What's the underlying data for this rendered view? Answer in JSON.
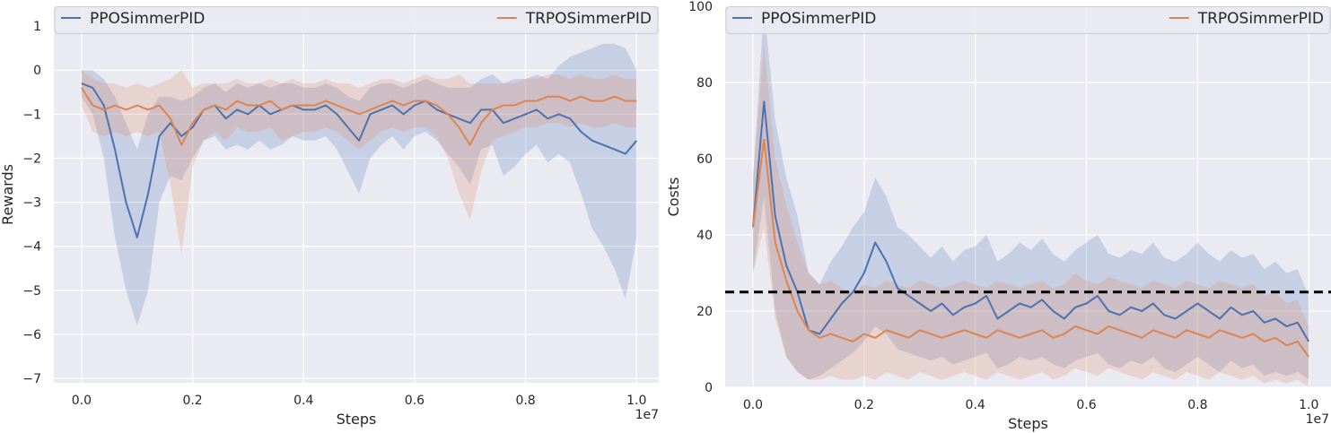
{
  "chart_data": [
    {
      "type": "line",
      "xlabel": "Steps",
      "ylabel": "Rewards",
      "x_offset_label": "1e7",
      "xlim": [
        -0.05,
        1.04
      ],
      "ylim": [
        -7.1,
        1.45
      ],
      "xticks": [
        "0.0",
        "0.2",
        "0.4",
        "0.6",
        "0.8",
        "1.0"
      ],
      "yticks": [
        "1",
        "0",
        "−1",
        "−2",
        "−3",
        "−4",
        "−5",
        "−6",
        "−7"
      ],
      "grid": true,
      "legend": "top, spanning width",
      "series": [
        {
          "name": "PPOSimmerPID",
          "color": "#4c72b0",
          "x": [
            0.0,
            0.02,
            0.04,
            0.06,
            0.08,
            0.1,
            0.12,
            0.14,
            0.16,
            0.18,
            0.2,
            0.22,
            0.24,
            0.26,
            0.28,
            0.3,
            0.32,
            0.34,
            0.36,
            0.38,
            0.4,
            0.42,
            0.44,
            0.46,
            0.48,
            0.5,
            0.52,
            0.54,
            0.56,
            0.58,
            0.6,
            0.62,
            0.64,
            0.66,
            0.68,
            0.7,
            0.72,
            0.74,
            0.76,
            0.78,
            0.8,
            0.82,
            0.84,
            0.86,
            0.88,
            0.9,
            0.92,
            0.94,
            0.96,
            0.98,
            1.0
          ],
          "y": [
            -0.3,
            -0.4,
            -0.8,
            -1.8,
            -3.0,
            -3.8,
            -2.8,
            -1.5,
            -1.2,
            -1.5,
            -1.3,
            -0.9,
            -0.8,
            -1.1,
            -0.9,
            -1.0,
            -0.8,
            -1.0,
            -0.9,
            -0.8,
            -0.9,
            -0.9,
            -0.8,
            -1.0,
            -1.3,
            -1.6,
            -1.0,
            -0.9,
            -0.8,
            -1.0,
            -0.8,
            -0.7,
            -0.9,
            -1.0,
            -1.1,
            -1.2,
            -0.9,
            -0.9,
            -1.2,
            -1.1,
            -1.0,
            -0.9,
            -1.1,
            -1.0,
            -1.1,
            -1.4,
            -1.6,
            -1.7,
            -1.8,
            -1.9,
            -1.6
          ],
          "band_lower": [
            -0.6,
            -1.0,
            -2.0,
            -3.8,
            -5.0,
            -5.8,
            -5.0,
            -3.0,
            -2.4,
            -2.5,
            -2.0,
            -1.6,
            -1.5,
            -1.8,
            -1.7,
            -1.8,
            -1.6,
            -1.8,
            -1.7,
            -1.5,
            -1.6,
            -1.6,
            -1.5,
            -1.8,
            -2.3,
            -2.8,
            -2.0,
            -1.7,
            -1.5,
            -1.8,
            -1.5,
            -1.4,
            -1.6,
            -1.9,
            -2.2,
            -2.6,
            -1.8,
            -1.7,
            -2.4,
            -2.2,
            -1.9,
            -1.7,
            -2.1,
            -1.9,
            -2.1,
            -2.8,
            -3.6,
            -4.0,
            -4.5,
            -5.2,
            -3.8
          ],
          "band_upper": [
            0.0,
            0.0,
            -0.2,
            -0.6,
            -1.2,
            -1.8,
            -1.0,
            -0.6,
            -0.6,
            -0.7,
            -0.6,
            -0.4,
            -0.3,
            -0.5,
            -0.3,
            -0.4,
            -0.3,
            -0.4,
            -0.3,
            -0.3,
            -0.4,
            -0.4,
            -0.3,
            -0.4,
            -0.6,
            -0.7,
            -0.4,
            -0.3,
            -0.3,
            -0.4,
            -0.3,
            -0.2,
            -0.3,
            -0.4,
            -0.4,
            -0.4,
            -0.2,
            -0.1,
            -0.3,
            -0.2,
            -0.2,
            -0.1,
            -0.2,
            0.1,
            0.3,
            0.4,
            0.5,
            0.6,
            0.6,
            0.5,
            0.0
          ]
        },
        {
          "name": "TRPOSimmerPID",
          "color": "#dd8452",
          "x": [
            0.0,
            0.02,
            0.04,
            0.06,
            0.08,
            0.1,
            0.12,
            0.14,
            0.16,
            0.18,
            0.2,
            0.22,
            0.24,
            0.26,
            0.28,
            0.3,
            0.32,
            0.34,
            0.36,
            0.38,
            0.4,
            0.42,
            0.44,
            0.46,
            0.48,
            0.5,
            0.52,
            0.54,
            0.56,
            0.58,
            0.6,
            0.62,
            0.64,
            0.66,
            0.68,
            0.7,
            0.72,
            0.74,
            0.76,
            0.78,
            0.8,
            0.82,
            0.84,
            0.86,
            0.88,
            0.9,
            0.92,
            0.94,
            0.96,
            0.98,
            1.0
          ],
          "y": [
            -0.4,
            -0.8,
            -0.9,
            -0.8,
            -0.9,
            -0.8,
            -0.9,
            -0.8,
            -1.1,
            -1.7,
            -1.2,
            -0.9,
            -0.8,
            -0.9,
            -0.7,
            -0.8,
            -0.8,
            -0.7,
            -0.9,
            -0.8,
            -0.8,
            -0.8,
            -0.7,
            -0.8,
            -0.9,
            -1.0,
            -0.9,
            -0.8,
            -0.7,
            -0.8,
            -0.7,
            -0.7,
            -0.8,
            -1.0,
            -1.3,
            -1.7,
            -1.2,
            -0.9,
            -0.8,
            -0.8,
            -0.7,
            -0.7,
            -0.6,
            -0.6,
            -0.7,
            -0.6,
            -0.7,
            -0.7,
            -0.6,
            -0.7,
            -0.7
          ],
          "band_lower": [
            -0.8,
            -1.4,
            -1.5,
            -1.4,
            -1.5,
            -1.4,
            -1.5,
            -1.4,
            -2.6,
            -4.2,
            -2.2,
            -1.6,
            -1.4,
            -1.6,
            -1.3,
            -1.4,
            -1.4,
            -1.3,
            -1.6,
            -1.5,
            -1.4,
            -1.4,
            -1.3,
            -1.4,
            -1.6,
            -1.8,
            -1.6,
            -1.4,
            -1.3,
            -1.4,
            -1.3,
            -1.3,
            -1.5,
            -2.0,
            -2.8,
            -3.4,
            -2.3,
            -1.6,
            -1.5,
            -1.4,
            -1.3,
            -1.3,
            -1.2,
            -1.2,
            -1.3,
            -1.2,
            -1.3,
            -1.3,
            -1.2,
            -1.3,
            -1.3
          ],
          "band_upper": [
            0.0,
            -0.2,
            -0.3,
            -0.3,
            -0.4,
            -0.3,
            -0.4,
            -0.3,
            -0.2,
            0.0,
            -0.4,
            -0.3,
            -0.3,
            -0.3,
            -0.2,
            -0.3,
            -0.3,
            -0.2,
            -0.3,
            -0.2,
            -0.3,
            -0.3,
            -0.2,
            -0.3,
            -0.3,
            -0.4,
            -0.3,
            -0.2,
            -0.2,
            -0.3,
            -0.2,
            -0.1,
            -0.2,
            -0.2,
            -0.1,
            -0.3,
            -0.3,
            -0.3,
            -0.3,
            -0.3,
            -0.2,
            -0.2,
            -0.1,
            -0.1,
            -0.2,
            -0.1,
            -0.2,
            -0.2,
            -0.1,
            -0.2,
            -0.2
          ]
        }
      ]
    },
    {
      "type": "line",
      "xlabel": "Steps",
      "ylabel": "Costs",
      "x_offset_label": "1e7",
      "xlim": [
        -0.05,
        1.04
      ],
      "ylim": [
        0,
        100
      ],
      "xticks": [
        "0.0",
        "0.2",
        "0.4",
        "0.6",
        "0.8",
        "1.0"
      ],
      "yticks": [
        "100",
        "80",
        "60",
        "40",
        "20",
        "0"
      ],
      "threshold": 25,
      "threshold_color": "#000000",
      "grid": true,
      "legend": "top, spanning width",
      "series": [
        {
          "name": "PPOSimmerPID",
          "color": "#4c72b0",
          "x": [
            0.0,
            0.02,
            0.04,
            0.06,
            0.08,
            0.1,
            0.12,
            0.14,
            0.16,
            0.18,
            0.2,
            0.22,
            0.24,
            0.26,
            0.28,
            0.3,
            0.32,
            0.34,
            0.36,
            0.38,
            0.4,
            0.42,
            0.44,
            0.46,
            0.48,
            0.5,
            0.52,
            0.54,
            0.56,
            0.58,
            0.6,
            0.62,
            0.64,
            0.66,
            0.68,
            0.7,
            0.72,
            0.74,
            0.76,
            0.78,
            0.8,
            0.82,
            0.84,
            0.86,
            0.88,
            0.9,
            0.92,
            0.94,
            0.96,
            0.98,
            1.0
          ],
          "y": [
            42,
            75,
            45,
            32,
            25,
            15,
            14,
            18,
            22,
            25,
            30,
            38,
            33,
            26,
            24,
            22,
            20,
            22,
            19,
            21,
            22,
            24,
            18,
            20,
            22,
            21,
            23,
            20,
            18,
            21,
            22,
            24,
            20,
            19,
            21,
            20,
            22,
            19,
            18,
            20,
            22,
            20,
            18,
            21,
            19,
            20,
            17,
            18,
            16,
            17,
            12
          ],
          "band_lower": [
            30,
            50,
            20,
            8,
            4,
            2,
            3,
            5,
            7,
            9,
            12,
            16,
            14,
            10,
            9,
            8,
            7,
            8,
            6,
            7,
            8,
            9,
            5,
            6,
            8,
            7,
            8,
            6,
            5,
            7,
            8,
            9,
            6,
            5,
            7,
            6,
            8,
            5,
            4,
            6,
            8,
            6,
            4,
            7,
            5,
            6,
            3,
            4,
            3,
            4,
            2
          ],
          "band_upper": [
            55,
            100,
            70,
            55,
            45,
            30,
            27,
            33,
            37,
            42,
            46,
            55,
            50,
            42,
            40,
            37,
            34,
            37,
            33,
            36,
            37,
            40,
            33,
            35,
            38,
            36,
            39,
            35,
            33,
            36,
            38,
            40,
            35,
            34,
            36,
            35,
            38,
            34,
            33,
            35,
            38,
            35,
            33,
            36,
            34,
            35,
            31,
            33,
            30,
            31,
            24
          ]
        },
        {
          "name": "TRPOSimmerPID",
          "color": "#dd8452",
          "x": [
            0.0,
            0.02,
            0.04,
            0.06,
            0.08,
            0.1,
            0.12,
            0.14,
            0.16,
            0.18,
            0.2,
            0.22,
            0.24,
            0.26,
            0.28,
            0.3,
            0.32,
            0.34,
            0.36,
            0.38,
            0.4,
            0.42,
            0.44,
            0.46,
            0.48,
            0.5,
            0.52,
            0.54,
            0.56,
            0.58,
            0.6,
            0.62,
            0.64,
            0.66,
            0.68,
            0.7,
            0.72,
            0.74,
            0.76,
            0.78,
            0.8,
            0.82,
            0.84,
            0.86,
            0.88,
            0.9,
            0.92,
            0.94,
            0.96,
            0.98,
            1.0
          ],
          "y": [
            42,
            65,
            38,
            28,
            20,
            15,
            13,
            14,
            13,
            12,
            14,
            13,
            15,
            14,
            13,
            15,
            14,
            13,
            14,
            15,
            14,
            13,
            15,
            14,
            13,
            14,
            15,
            13,
            14,
            16,
            15,
            14,
            16,
            15,
            14,
            13,
            15,
            14,
            13,
            15,
            14,
            13,
            15,
            14,
            13,
            14,
            12,
            13,
            11,
            12,
            8
          ],
          "band_lower": [
            30,
            42,
            18,
            8,
            4,
            2,
            2,
            3,
            2,
            2,
            3,
            2,
            4,
            3,
            2,
            4,
            3,
            2,
            3,
            4,
            3,
            2,
            4,
            3,
            2,
            3,
            4,
            2,
            3,
            5,
            4,
            3,
            5,
            4,
            3,
            2,
            4,
            3,
            2,
            4,
            3,
            2,
            4,
            3,
            2,
            3,
            1,
            2,
            1,
            2,
            0
          ],
          "band_upper": [
            55,
            90,
            60,
            48,
            38,
            30,
            27,
            28,
            26,
            25,
            27,
            26,
            28,
            27,
            26,
            28,
            27,
            26,
            27,
            28,
            27,
            26,
            28,
            27,
            26,
            27,
            28,
            26,
            27,
            30,
            28,
            27,
            29,
            28,
            27,
            26,
            28,
            27,
            26,
            28,
            27,
            26,
            28,
            27,
            26,
            27,
            24,
            25,
            22,
            23,
            16
          ]
        }
      ]
    }
  ]
}
